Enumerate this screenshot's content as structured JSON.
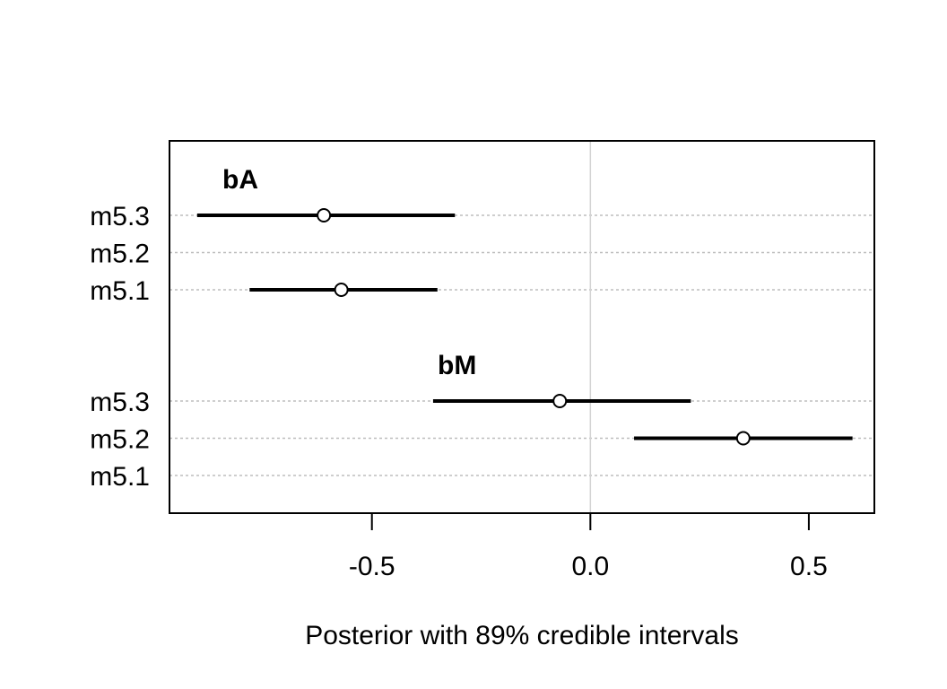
{
  "chart_data": {
    "type": "dot-interval",
    "xlabel": "Posterior with 89% credible intervals",
    "xlim": [
      -0.9633,
      0.65
    ],
    "x_ticks": [
      -0.5,
      0.0,
      0.5
    ],
    "x_tick_labels": [
      "-0.5",
      "0.0",
      "0.5"
    ],
    "reference_line_x": 0,
    "row_labels": [
      "m5.3",
      "m5.2",
      "m5.1"
    ],
    "groups": [
      {
        "name": "bA",
        "rows": [
          {
            "label": "m5.3",
            "mean": -0.61,
            "lo": -0.9,
            "hi": -0.31
          },
          {
            "label": "m5.2",
            "mean": null,
            "lo": null,
            "hi": null
          },
          {
            "label": "m5.1",
            "mean": -0.57,
            "lo": -0.78,
            "hi": -0.35
          }
        ]
      },
      {
        "name": "bM",
        "rows": [
          {
            "label": "m5.3",
            "mean": -0.07,
            "lo": -0.36,
            "hi": 0.23
          },
          {
            "label": "m5.2",
            "mean": 0.35,
            "lo": 0.1,
            "hi": 0.6
          },
          {
            "label": "m5.1",
            "mean": null,
            "lo": null,
            "hi": null
          }
        ]
      }
    ],
    "colors": {
      "interval": "#000000",
      "dotted_gridline": "#bebebe",
      "zero_line": "#d3d3d3",
      "frame": "#000000"
    }
  }
}
